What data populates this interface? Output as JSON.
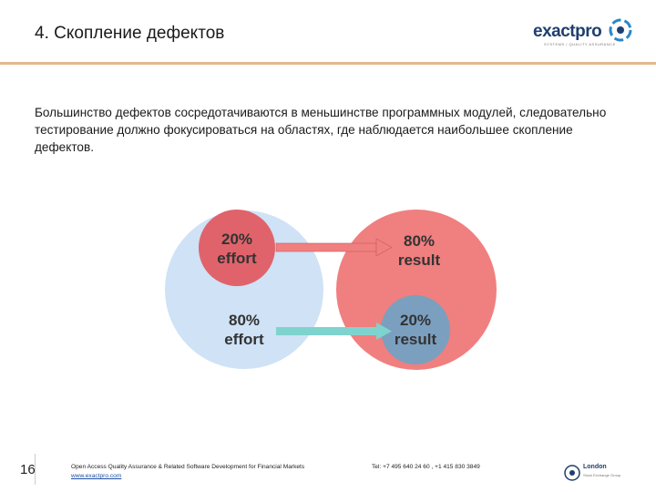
{
  "header": {
    "title": "4. Скопление дефектов",
    "logo_text": "exactpro",
    "logo_subtitle": "SYSTEMS / QUALITY ASSURANCE",
    "accent_color": "#e2b98c"
  },
  "main": {
    "paragraph": "Большинство дефектов сосредотачиваются в меньшинстве программных модулей, следовательно тестирование должно фокусироваться на областях, где наблюдается наибольшее скопление дефектов."
  },
  "diagram": {
    "left_circle": {
      "color": "#cfe2f6"
    },
    "right_circle": {
      "color": "#f07f7f"
    },
    "top_left": {
      "line1": "20%",
      "line2": "effort",
      "color": "#e0636b"
    },
    "bottom_left": {
      "line1": "80%",
      "line2": "effort"
    },
    "top_right": {
      "line1": "80%",
      "line2": "result"
    },
    "bottom_right": {
      "line1": "20%",
      "line2": "result",
      "color": "#7b9fbf"
    },
    "arrow_top_color": "#f07f7f",
    "arrow_bottom_color": "#7fd3cf"
  },
  "footer": {
    "page_number": "16",
    "description": "Open Access Quality Assurance & Related Software Development for Financial Markets",
    "url": "www.exactpro.com",
    "telephone": "Tel: +7 495 640 24 60 , +1 415 830 3849",
    "partner_name": "London",
    "partner_sub": "Stock Exchange Group"
  }
}
